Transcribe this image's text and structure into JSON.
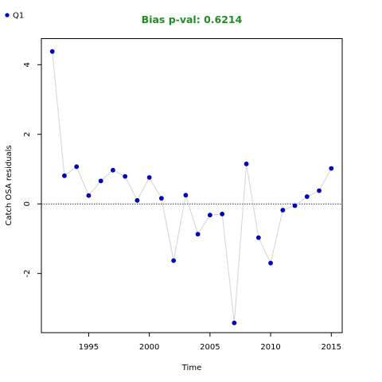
{
  "chart_data": {
    "type": "line",
    "title": "Bias p-val: 0.6214",
    "title_color": "#228B22",
    "xlabel": "Time",
    "ylabel": "Catch OSA residuals",
    "xlim": [
      1991.1,
      2015.9
    ],
    "ylim": [
      -3.7,
      4.75
    ],
    "x_ticks": [
      1995,
      2000,
      2005,
      2010,
      2015
    ],
    "y_ticks": [
      -2,
      0,
      2,
      4
    ],
    "reference_line_y": 0,
    "grid": false,
    "legend_position": "top-left",
    "series": [
      {
        "name": "Q1",
        "point_color": "#0000CD",
        "line_color": "#D3D3D3",
        "x": [
          1992,
          1993,
          1994,
          1995,
          1996,
          1997,
          1998,
          1999,
          2000,
          2001,
          2002,
          2003,
          2004,
          2005,
          2006,
          2007,
          2008,
          2009,
          2010,
          2011,
          2012,
          2013,
          2014,
          2015
        ],
        "y": [
          4.38,
          0.81,
          1.07,
          0.24,
          0.66,
          0.97,
          0.79,
          0.1,
          0.76,
          0.16,
          -1.63,
          0.25,
          -0.87,
          -0.32,
          -0.29,
          -3.42,
          1.15,
          -0.97,
          -1.7,
          -0.18,
          -0.05,
          0.21,
          0.38,
          1.02
        ]
      }
    ]
  }
}
